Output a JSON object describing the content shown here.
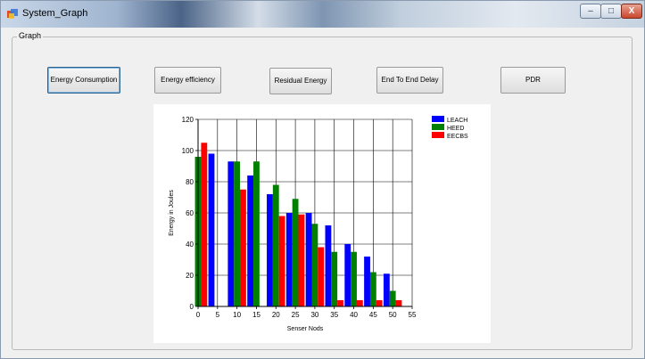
{
  "window": {
    "title": "System_Graph",
    "min_icon": "minimize-icon",
    "max_icon": "maximize-icon",
    "close_icon": "close-icon",
    "min_glyph": "–",
    "max_glyph": "□",
    "close_glyph": "X"
  },
  "group": {
    "label": "Graph"
  },
  "buttons": {
    "energy_consumption": "Energy Consumption",
    "energy_efficiency": "Energy efficiency",
    "residual_energy": "Residual Energy",
    "end_to_end_delay": "End To End Delay",
    "pdr": "PDR"
  },
  "chart_data": {
    "type": "bar",
    "xlabel": "Senser Nods",
    "ylabel": "Energy in Joules",
    "ylim": [
      0,
      120
    ],
    "yticks": [
      0,
      20,
      40,
      60,
      80,
      100,
      120
    ],
    "xlim": [
      0,
      55
    ],
    "xticks": [
      0,
      5,
      10,
      15,
      20,
      25,
      30,
      35,
      40,
      45,
      50,
      55
    ],
    "grid": true,
    "legend_position": "top-right",
    "series": [
      {
        "name": "LEACH",
        "color": "#0000ff",
        "points": [
          [
            5,
            98
          ],
          [
            10,
            93
          ],
          [
            15,
            84
          ],
          [
            20,
            72
          ],
          [
            25,
            60
          ],
          [
            30,
            60
          ],
          [
            35,
            52
          ],
          [
            40,
            40
          ],
          [
            45,
            32
          ],
          [
            50,
            21
          ]
        ]
      },
      {
        "name": "HEED",
        "color": "#008000",
        "points": [
          [
            0,
            96
          ],
          [
            10,
            93
          ],
          [
            15,
            93
          ],
          [
            20,
            78
          ],
          [
            25,
            69
          ],
          [
            30,
            53
          ],
          [
            35,
            35
          ],
          [
            40,
            35
          ],
          [
            45,
            22
          ],
          [
            50,
            10
          ]
        ]
      },
      {
        "name": "EECBS",
        "color": "#ff0000",
        "points": [
          [
            0,
            105
          ],
          [
            10,
            75
          ],
          [
            20,
            58
          ],
          [
            25,
            59
          ],
          [
            30,
            38
          ],
          [
            35,
            4
          ],
          [
            40,
            4
          ],
          [
            45,
            4
          ],
          [
            50,
            4
          ]
        ]
      }
    ]
  }
}
